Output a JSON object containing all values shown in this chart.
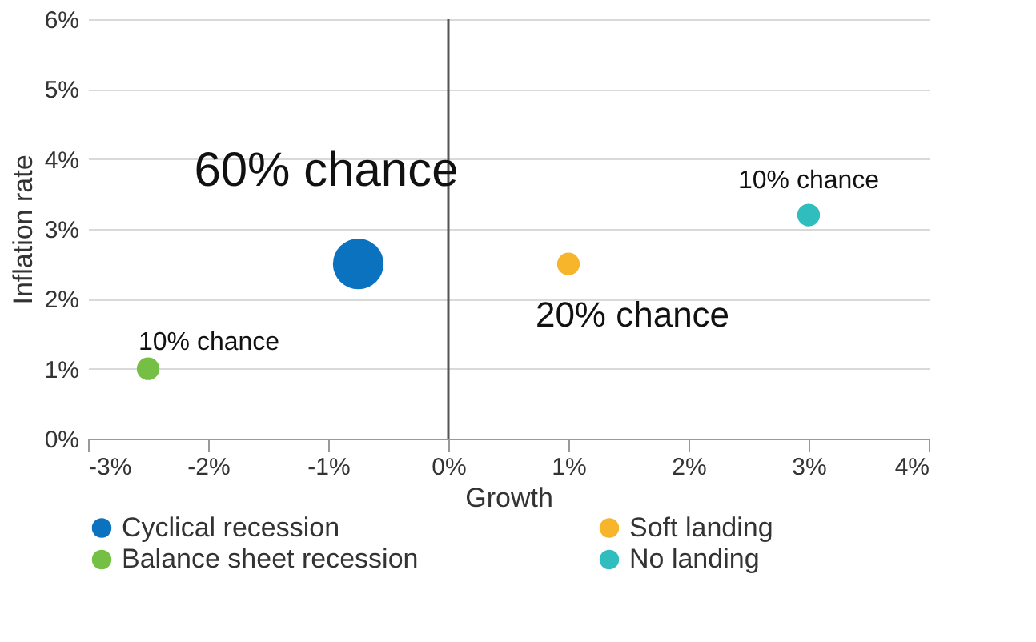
{
  "chart_data": {
    "type": "bubble",
    "xlabel": "Growth",
    "ylabel": "Inflation rate",
    "xlim": [
      -3,
      4
    ],
    "xticks": [
      {
        "value": -3,
        "label": "-3%"
      },
      {
        "value": -2,
        "label": "-2%"
      },
      {
        "value": -1,
        "label": "-1%"
      },
      {
        "value": 0,
        "label": "0%"
      },
      {
        "value": 1,
        "label": "1%"
      },
      {
        "value": 2,
        "label": "2%"
      },
      {
        "value": 3,
        "label": "3%"
      },
      {
        "value": 4,
        "label": "4%"
      }
    ],
    "ylim": [
      0,
      6
    ],
    "yticks": [
      {
        "value": 0,
        "label": "0%"
      },
      {
        "value": 1,
        "label": "1%"
      },
      {
        "value": 2,
        "label": "2%"
      },
      {
        "value": 3,
        "label": "3%"
      },
      {
        "value": 4,
        "label": "4%"
      },
      {
        "value": 5,
        "label": "5%"
      },
      {
        "value": 6,
        "label": "6%"
      }
    ],
    "series": [
      {
        "name": "Cyclical recession",
        "color": "#0a72bf",
        "x": [
          -0.75
        ],
        "values": [
          2.5
        ],
        "sizes": [
          1
        ]
      },
      {
        "name": "Soft landing",
        "color": "#f7b52c",
        "x": [
          1.0
        ],
        "values": [
          2.5
        ],
        "sizes": [
          0.2
        ]
      },
      {
        "name": "Balance sheet recession",
        "color": "#74bf44",
        "x": [
          -2.5
        ],
        "values": [
          1.0
        ],
        "sizes": [
          0.2
        ]
      },
      {
        "name": "No landing",
        "color": "#2fbdbd",
        "x": [
          3.0
        ],
        "values": [
          3.2
        ],
        "sizes": [
          0.2
        ]
      }
    ],
    "annotations": [
      {
        "text": "60% chance",
        "x": -0.75,
        "y": 2.5
      },
      {
        "text": "20% chance",
        "x": 1.0,
        "y": 2.5
      },
      {
        "text": "10% chance",
        "x": -2.5,
        "y": 1.0
      },
      {
        "text": "10% chance",
        "x": 3.0,
        "y": 3.2
      }
    ],
    "ref_lines": [
      {
        "axis": "x",
        "value": 0,
        "color": "#555555"
      }
    ],
    "grid": "y",
    "legend": "bottom"
  }
}
